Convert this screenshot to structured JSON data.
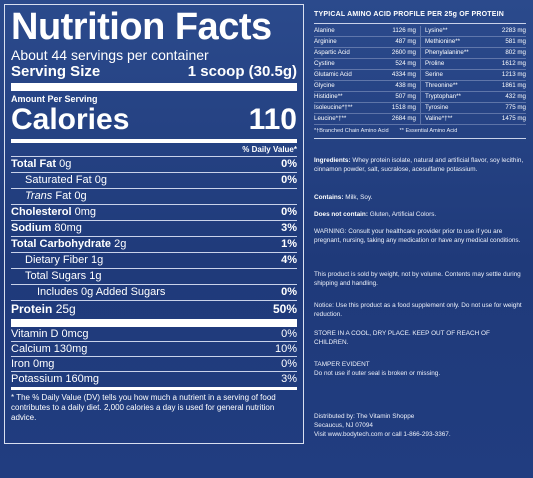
{
  "nutrition": {
    "title": "Nutrition Facts",
    "servings_per_container": "About 44 servings per container",
    "serving_size_label": "Serving Size",
    "serving_size_value": "1 scoop (30.5g)",
    "amount_per_serving": "Amount Per Serving",
    "calories_label": "Calories",
    "calories_value": "110",
    "dv_header": "% Daily Value*",
    "rows": [
      {
        "label": "Total Fat",
        "amount": "0g",
        "pct": "0%"
      },
      {
        "label": "Saturated Fat",
        "amount": "0g",
        "pct": "0%"
      },
      {
        "label": "Trans",
        "amount": "Fat 0g",
        "pct": ""
      },
      {
        "label": "Cholesterol",
        "amount": "0mg",
        "pct": "0%"
      },
      {
        "label": "Sodium",
        "amount": "80mg",
        "pct": "3%"
      },
      {
        "label": "Total Carbohydrate",
        "amount": "2g",
        "pct": "1%"
      },
      {
        "label": "Dietary Fiber",
        "amount": "1g",
        "pct": "4%"
      },
      {
        "label": "Total Sugars",
        "amount": "1g",
        "pct": ""
      },
      {
        "label": "Includes 0g Added Sugars",
        "amount": "",
        "pct": "0%"
      },
      {
        "label": "Protein",
        "amount": "25g",
        "pct": "50%"
      }
    ],
    "vitamins": [
      {
        "label": "Vitamin D 0mcg",
        "pct": "0%"
      },
      {
        "label": "Calcium 130mg",
        "pct": "10%"
      },
      {
        "label": "Iron 0mg",
        "pct": "0%"
      },
      {
        "label": "Potassium 160mg",
        "pct": "3%"
      }
    ],
    "footnote": "* The % Daily Value (DV) tells you how much a nutrient in a serving of food contributes to a daily diet. 2,000 calories a day is used for general nutrition advice."
  },
  "amino": {
    "title": "TYPICAL AMINO ACID PROFILE PER 25g OF PROTEIN",
    "rows": [
      [
        {
          "name": "Alanine",
          "val": "1126 mg"
        },
        {
          "name": "Lysine**",
          "val": "2283 mg"
        }
      ],
      [
        {
          "name": "Arginine",
          "val": "487 mg"
        },
        {
          "name": "Methionine**",
          "val": "581 mg"
        }
      ],
      [
        {
          "name": "Aspartic Acid",
          "val": "2600 mg"
        },
        {
          "name": "Phenylalanine**",
          "val": "802 mg"
        }
      ],
      [
        {
          "name": "Cystine",
          "val": "524 mg"
        },
        {
          "name": "Proline",
          "val": "1612 mg"
        }
      ],
      [
        {
          "name": "Glutamic Acid",
          "val": "4334 mg"
        },
        {
          "name": "Serine",
          "val": "1213 mg"
        }
      ],
      [
        {
          "name": "Glycine",
          "val": "438 mg"
        },
        {
          "name": "Threonine**",
          "val": "1861 mg"
        }
      ],
      [
        {
          "name": "Histidine**",
          "val": "507 mg"
        },
        {
          "name": "Tryptophan**",
          "val": "432 mg"
        }
      ],
      [
        {
          "name": "Isoleucine*†**",
          "val": "1518 mg"
        },
        {
          "name": "Tyrosine",
          "val": "775 mg"
        }
      ],
      [
        {
          "name": "Leucine*†**",
          "val": "2684 mg"
        },
        {
          "name": "Valine*†**",
          "val": "1475 mg"
        }
      ]
    ],
    "note_bcaa": "*†Branched Chain Amino Acid",
    "note_eaa": "** Essential Amino Acid"
  },
  "info": {
    "ingredients_label": "Ingredients:",
    "ingredients_text": "Whey protein isolate, natural and artificial flavor, soy lecithin, cinnamon powder, salt, sucralose, acesulfame potassium.",
    "contains_label": "Contains:",
    "contains_text": "Milk, Soy.",
    "not_contain_label": "Does not contain:",
    "not_contain_text": "Gluten, Artificial Colors.",
    "warning": "WARNING: Consult your healthcare provider prior to use if you are pregnant, nursing, taking any medication or have any medical conditions.",
    "weight_note": "This product is sold by weight, not by volume. Contents may settle during shipping and handling.",
    "notice": "Notice: Use this product as a food supplement only. Do not use for weight reduction.",
    "store": "STORE IN A COOL, DRY PLACE. KEEP OUT OF REACH OF CHILDREN.",
    "tamper_title": "TAMPER EVIDENT",
    "tamper_text": "Do not use if outer seal is broken or missing.",
    "distributed_line1": "Distributed by: The Vitamin Shoppe",
    "distributed_line2": "Secaucus, NJ 07094",
    "distributed_line3": "Visit www.bodytech.com or call 1-866-293-3367."
  }
}
